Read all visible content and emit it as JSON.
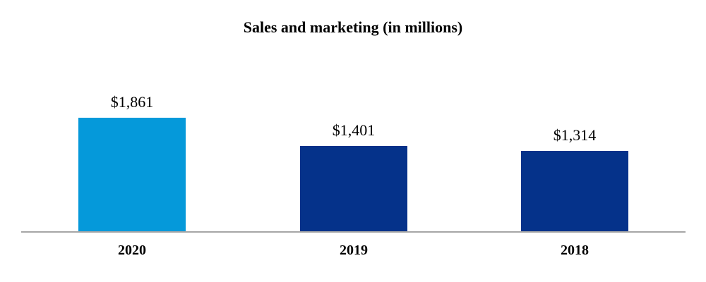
{
  "chart_data": {
    "type": "bar",
    "title": "Sales and marketing (in millions)",
    "categories": [
      "2020",
      "2019",
      "2018"
    ],
    "values": [
      1861,
      1401,
      1314
    ],
    "value_labels": [
      "$1,861",
      "$1,401",
      "$1,314"
    ],
    "bar_colors": [
      "#0599da",
      "#05328a",
      "#05328a"
    ],
    "xlabel": "",
    "ylabel": "",
    "ylim": [
      0,
      1900
    ],
    "grid": false,
    "legend": "none",
    "axis_line_color": "#a6a6a6",
    "background_color": "#ffffff",
    "text_color": "#000000"
  }
}
